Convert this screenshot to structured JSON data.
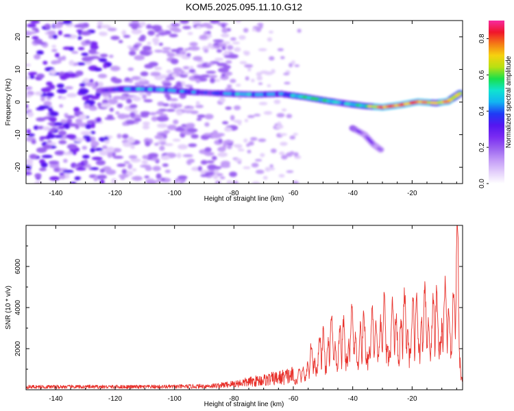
{
  "figure_title": "KOM5.2025.095.11.10.G12",
  "colors": {
    "snr_line": "#e8302a",
    "background": "#ffffff",
    "colormap": [
      "#ffffff",
      "#e3cffb",
      "#c39cf7",
      "#9b63f0",
      "#7a2cf2",
      "#5516f0",
      "#1f3af5",
      "#12b4f2",
      "#10e3d0",
      "#19e04b",
      "#b8e012",
      "#f6d20f",
      "#f47a16",
      "#f0152b",
      "#f72aa0"
    ]
  },
  "chart_data": [
    {
      "type": "heatmap",
      "xlabel": "Height of straight line (km)",
      "ylabel": "Frequency (Hz)",
      "xlim": [
        -150,
        -3
      ],
      "ylim": [
        -25,
        25
      ],
      "xticks": [
        -140,
        -120,
        -100,
        -80,
        -60,
        -40,
        -20
      ],
      "yticks": [
        -20,
        -10,
        0,
        10,
        20
      ],
      "colorbar": {
        "label": "Normalized spectral amplitude",
        "range": [
          0.0,
          0.9
        ],
        "ticks": [
          "0.0",
          "0.2",
          "0.4",
          "0.6",
          "0.8"
        ]
      },
      "ridge": {
        "x": [
          -125,
          -118,
          -112,
          -104,
          -96,
          -88,
          -80,
          -72,
          -64,
          -56,
          -48,
          -42,
          -36,
          -30,
          -24,
          -18,
          -12,
          -8,
          -3
        ],
        "freq": [
          3.5,
          4,
          4,
          3.8,
          3.2,
          2.8,
          2.5,
          2.3,
          2.5,
          1.5,
          0.3,
          -0.5,
          -1.2,
          -1.6,
          -0.9,
          0.1,
          -0.3,
          0.2,
          3.2
        ],
        "amplitude": [
          0.3,
          0.42,
          0.5,
          0.5,
          0.45,
          0.38,
          0.52,
          0.5,
          0.45,
          0.62,
          0.55,
          0.5,
          0.6,
          0.85,
          0.8,
          0.85,
          0.72,
          0.8,
          0.65
        ]
      },
      "secondary_branch": {
        "x": [
          -40,
          -36,
          -33,
          -30
        ],
        "freq": [
          -8,
          -10,
          -13,
          -15
        ],
        "amplitude": [
          0.3,
          0.28,
          0.25,
          0.2
        ]
      }
    },
    {
      "type": "line",
      "xlabel": "Height of straight line (km)",
      "ylabel": "SNR (10 * v/v)",
      "xlim": [
        -150,
        -3
      ],
      "ylim": [
        0,
        8000
      ],
      "xticks": [
        -140,
        -120,
        -100,
        -80,
        -60,
        -40,
        -20
      ],
      "yticks": [
        2000,
        4000,
        6000
      ],
      "series": [
        {
          "x": [
            -150,
            -140,
            -130,
            -120,
            -110,
            -100,
            -90,
            -85,
            -80,
            -75,
            -70,
            -65,
            -60,
            -57,
            -55,
            -52,
            -50,
            -48,
            -46,
            -44,
            -42,
            -40,
            -38,
            -36,
            -34,
            -32,
            -30,
            -28,
            -26,
            -24,
            -22,
            -20,
            -18,
            -16,
            -14,
            -12,
            -10,
            -8,
            -6,
            -5,
            -4.5,
            -4,
            -3.5,
            -3
          ],
          "values": [
            150,
            150,
            150,
            150,
            150,
            160,
            180,
            220,
            300,
            400,
            500,
            600,
            750,
            1000,
            1600,
            2200,
            2600,
            3000,
            2800,
            2900,
            3100,
            3400,
            3000,
            3200,
            3300,
            3400,
            3600,
            3800,
            3700,
            3800,
            3900,
            3700,
            4200,
            4000,
            4300,
            4200,
            4500,
            4600,
            5000,
            6000,
            7800,
            3000,
            1400,
            700
          ]
        }
      ]
    }
  ]
}
